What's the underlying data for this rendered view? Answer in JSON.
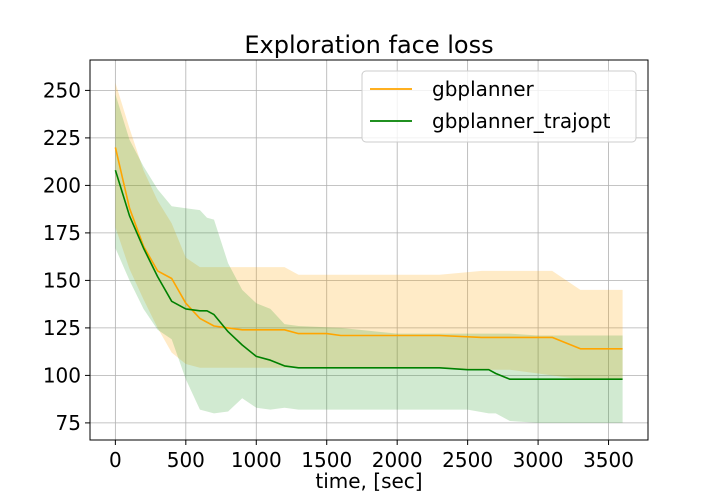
{
  "chart_data": {
    "type": "line",
    "title": "Exploration face loss",
    "xlabel": "time, [sec]",
    "ylabel": "",
    "xlim": [
      -180,
      3780
    ],
    "ylim": [
      66,
      266
    ],
    "xticks": [
      0,
      500,
      1000,
      1500,
      2000,
      2500,
      3000,
      3500
    ],
    "yticks": [
      75,
      100,
      125,
      150,
      175,
      200,
      225,
      250
    ],
    "grid": true,
    "legend_position": "top-right",
    "series": [
      {
        "name": "gbplanner",
        "color": "#ffa500",
        "band_color": "#ffa500",
        "x": [
          0,
          100,
          200,
          300,
          400,
          500,
          600,
          700,
          800,
          900,
          1000,
          1200,
          1300,
          1500,
          1600,
          2000,
          2300,
          2600,
          2800,
          3100,
          3300,
          3400,
          3600
        ],
        "y": [
          220,
          188,
          168,
          155,
          151,
          138,
          130,
          126,
          125,
          124,
          124,
          124,
          122,
          122,
          121,
          121,
          121,
          120,
          120,
          120,
          114,
          114,
          114
        ],
        "lower": [
          178,
          156,
          140,
          125,
          112,
          106,
          104,
          104,
          104,
          104,
          104,
          104,
          104,
          104,
          104,
          104,
          104,
          103,
          103,
          100,
          98,
          98,
          98
        ],
        "upper": [
          254,
          230,
          208,
          192,
          180,
          162,
          157,
          157,
          157,
          157,
          157,
          157,
          153,
          153,
          153,
          153,
          153,
          155,
          155,
          155,
          145,
          145,
          145
        ]
      },
      {
        "name": "gbplanner_trajopt",
        "color": "#008000",
        "band_color": "#2ca02c",
        "x": [
          0,
          100,
          200,
          300,
          400,
          500,
          600,
          650,
          700,
          800,
          900,
          1000,
          1100,
          1200,
          1300,
          1600,
          2000,
          2300,
          2500,
          2650,
          2700,
          2800,
          3000,
          3300,
          3600
        ],
        "y": [
          208,
          184,
          167,
          152,
          139,
          135,
          134,
          134,
          132,
          123,
          116,
          110,
          108,
          105,
          104,
          104,
          104,
          104,
          103,
          103,
          101,
          98,
          98,
          98,
          98
        ],
        "lower": [
          167,
          150,
          135,
          124,
          119,
          98,
          82,
          81,
          80,
          81,
          88,
          83,
          82,
          83,
          82,
          82,
          82,
          82,
          82,
          80,
          80,
          76,
          75,
          75,
          75
        ],
        "upper": [
          248,
          224,
          210,
          198,
          189,
          188,
          187,
          183,
          182,
          159,
          145,
          138,
          135,
          127,
          126,
          125,
          122,
          122,
          122,
          122,
          122,
          122,
          121,
          121,
          121
        ]
      }
    ]
  }
}
